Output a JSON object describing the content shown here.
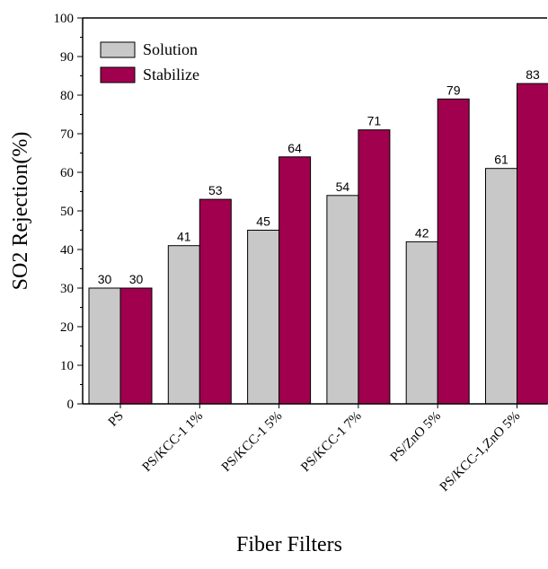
{
  "chart_data": {
    "type": "bar",
    "title": "",
    "xlabel": "Fiber Filters",
    "ylabel": "SO2 Rejection(%)",
    "ylim": [
      0,
      100
    ],
    "yticks": [
      0,
      10,
      20,
      30,
      40,
      50,
      60,
      70,
      80,
      90,
      100
    ],
    "categories": [
      "PS",
      "PS/KCC-1 1%",
      "PS/KCC-1 5%",
      "PS/KCC-1 7%",
      "PS/ZnO 5%",
      "PS/KCC-1,ZnO 5%"
    ],
    "series": [
      {
        "name": "Solution",
        "color": "#c8c8c8",
        "values": [
          30,
          41,
          45,
          54,
          42,
          61
        ]
      },
      {
        "name": "Stabilize",
        "color": "#a0004d",
        "values": [
          30,
          53,
          64,
          71,
          79,
          83
        ]
      }
    ],
    "legend_position": "top-left",
    "grid": false
  }
}
